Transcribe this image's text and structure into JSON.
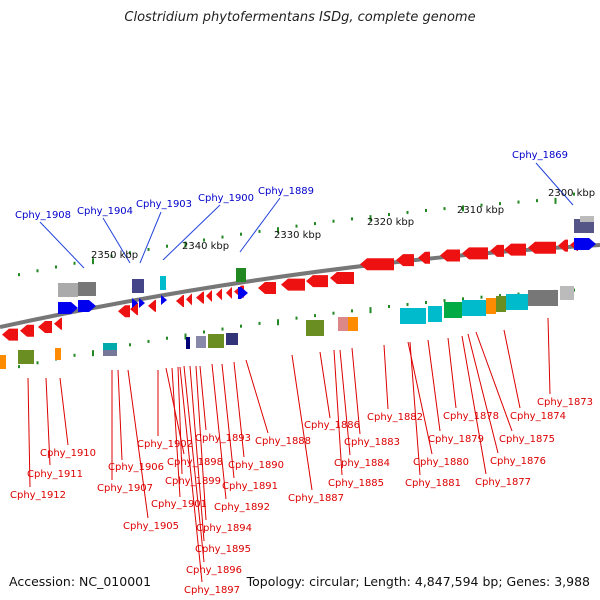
{
  "title": "Clostridium phytofermentans ISDg, complete genome",
  "accession": "Accession: NC_010001",
  "topology": "Topology: circular; Length: 4,847,594 bp; Genes: 3,988",
  "colors": {
    "label_top": "#0000cc",
    "label_bottom": "#dd0000",
    "gene_forward": "#0000ee",
    "gene_reverse": "#ee0000",
    "tick": "#228822",
    "backbone": "#777777"
  },
  "scale_labels": [
    "2350 kbp",
    "2340 kbp",
    "2330 kbp",
    "2320 kbp",
    "2310 kbp",
    "2300 kbp"
  ],
  "top_labels": [
    "Cphy_1908",
    "Cphy_1904",
    "Cphy_1903",
    "Cphy_1900",
    "Cphy_1889",
    "Cphy_1869"
  ],
  "bottom_labels": [
    "Cphy_1910",
    "Cphy_1911",
    "Cphy_1912",
    "Cphy_1906",
    "Cphy_1907",
    "Cphy_1905",
    "Cphy_1902",
    "Cphy_1898",
    "Cphy_1899",
    "Cphy_1901",
    "Cphy_1893",
    "Cphy_1894",
    "Cphy_1895",
    "Cphy_1896",
    "Cphy_1897",
    "Cphy_1890",
    "Cphy_1891",
    "Cphy_1892",
    "Cphy_1888",
    "Cphy_1887",
    "Cphy_1886",
    "Cphy_1884",
    "Cphy_1885",
    "Cphy_1883",
    "Cphy_1882",
    "Cphy_1880",
    "Cphy_1881",
    "Cphy_1879",
    "Cphy_1878",
    "Cphy_1877",
    "Cphy_1876",
    "Cphy_1875",
    "Cphy_1874",
    "Cphy_1873"
  ]
}
